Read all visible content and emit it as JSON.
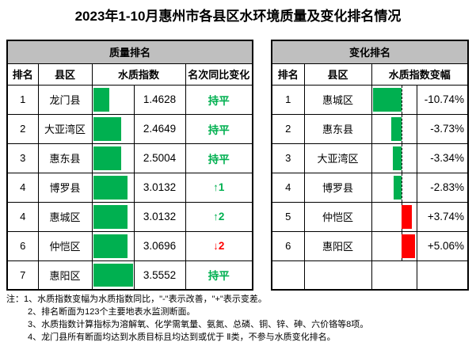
{
  "title": "2023年1-10月惠州市各县区水环境质量及变化排名情况",
  "colors": {
    "bar_green": "#00B050",
    "bar_red": "#FF0000",
    "improve_text_green": "#00B050",
    "worsen_text_red": "#FF0000",
    "header_bg": "#BFBFBF",
    "border": "#000000"
  },
  "left_table": {
    "title": "质量排名",
    "headers": {
      "rank": "排名",
      "district": "县区",
      "index": "水质指数",
      "change": "名次同比变化"
    },
    "rows": [
      {
        "rank": "1",
        "district": "龙门县",
        "index": "1.4628",
        "change": "持平",
        "trend": "flat"
      },
      {
        "rank": "2",
        "district": "大亚湾区",
        "index": "2.4649",
        "change": "持平",
        "trend": "flat"
      },
      {
        "rank": "3",
        "district": "惠东县",
        "index": "2.5004",
        "change": "持平",
        "trend": "flat"
      },
      {
        "rank": "4",
        "district": "博罗县",
        "index": "3.0132",
        "change": "↑1",
        "trend": "up"
      },
      {
        "rank": "4",
        "district": "惠城区",
        "index": "3.0132",
        "change": "↑2",
        "trend": "up"
      },
      {
        "rank": "6",
        "district": "仲恺区",
        "index": "3.0696",
        "change": "↓2",
        "trend": "down"
      },
      {
        "rank": "7",
        "district": "惠阳区",
        "index": "3.5552",
        "change": "持平",
        "trend": "flat"
      }
    ]
  },
  "right_table": {
    "title": "变化排名",
    "headers": {
      "rank": "排名",
      "district": "县区",
      "delta": "水质指数变幅"
    },
    "rows": [
      {
        "rank": "1",
        "district": "惠城区",
        "delta": "-10.74%"
      },
      {
        "rank": "2",
        "district": "惠东县",
        "delta": "-3.73%"
      },
      {
        "rank": "3",
        "district": "大亚湾区",
        "delta": "-3.34%"
      },
      {
        "rank": "4",
        "district": "博罗县",
        "delta": "-2.83%"
      },
      {
        "rank": "5",
        "district": "仲恺区",
        "delta": "+3.74%"
      },
      {
        "rank": "6",
        "district": "惠阳区",
        "delta": "+5.06%"
      }
    ]
  },
  "notes": {
    "prefix": "注：",
    "items": [
      "1、水质指数变幅为水质指数同比，\"-\"表示改善，\"+\"表示变差。",
      "2、排名断面为123个主要地表水监测断面。",
      "3、水质指数计算指标为溶解氧、化学需氧量、氨氮、总磷、铜、锌、砷、六价铬等8项。",
      "4、龙门县所有断面均达到水质目标且均达到或优于 Ⅱ类，不参与水质变化排名。"
    ]
  },
  "chart_data": [
    {
      "type": "table",
      "title": "质量排名",
      "columns": [
        "排名",
        "县区",
        "水质指数",
        "名次同比变化"
      ],
      "rows": [
        [
          1,
          "龙门县",
          1.4628,
          "持平"
        ],
        [
          2,
          "大亚湾区",
          2.4649,
          "持平"
        ],
        [
          3,
          "惠东县",
          2.5004,
          "持平"
        ],
        [
          4,
          "博罗县",
          3.0132,
          "↑1"
        ],
        [
          4,
          "惠城区",
          3.0132,
          "↑2"
        ],
        [
          6,
          "仲恺区",
          3.0696,
          "↓2"
        ],
        [
          7,
          "惠阳区",
          3.5552,
          "持平"
        ]
      ],
      "bar_column": "水质指数",
      "bar_range": [
        0,
        3.7
      ],
      "bar_color": "#00B050"
    },
    {
      "type": "table",
      "title": "变化排名",
      "columns": [
        "排名",
        "县区",
        "水质指数变幅"
      ],
      "unit": "%",
      "rows": [
        [
          1,
          "惠城区",
          -10.74
        ],
        [
          2,
          "惠东县",
          -3.73
        ],
        [
          3,
          "大亚湾区",
          -3.34
        ],
        [
          4,
          "博罗县",
          -2.83
        ],
        [
          5,
          "仲恺区",
          3.74
        ],
        [
          6,
          "惠阳区",
          5.06
        ]
      ],
      "bar_column": "水质指数变幅",
      "bar_zero_axis": true,
      "bar_colors": {
        "negative": "#00B050",
        "positive": "#FF0000"
      }
    }
  ]
}
